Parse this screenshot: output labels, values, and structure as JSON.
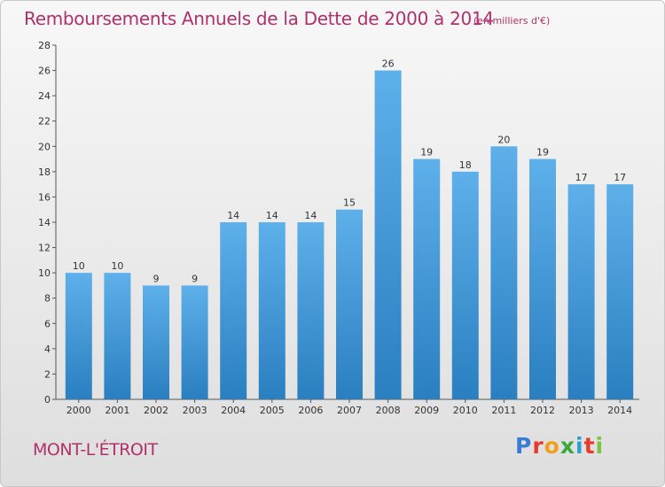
{
  "page": {
    "title": "Remboursements Annuels de la Dette de 2000 à 2014",
    "unit": "(en milliers d'€)",
    "commune": "MONT-L'ÉTROIT",
    "logo_text": "Proxiti"
  },
  "colors": {
    "title": "#b0306b",
    "bar_top": "#5eb0ea",
    "bar_bottom": "#2a7fc0",
    "logo": [
      "#3a7bd5",
      "#e63a2e",
      "#f0a020",
      "#3aa83a",
      "#2a9fd6",
      "#e63a2e",
      "#7bc142"
    ]
  },
  "chart_data": {
    "type": "bar",
    "categories": [
      "2000",
      "2001",
      "2002",
      "2003",
      "2004",
      "2005",
      "2006",
      "2007",
      "2008",
      "2009",
      "2010",
      "2011",
      "2012",
      "2013",
      "2014"
    ],
    "values": [
      10,
      10,
      9,
      9,
      14,
      14,
      14,
      15,
      26,
      19,
      18,
      20,
      19,
      17,
      17
    ],
    "ylim": [
      0,
      28
    ],
    "yticks": [
      0,
      2,
      4,
      6,
      8,
      10,
      12,
      14,
      16,
      18,
      20,
      22,
      24,
      26,
      28
    ],
    "data_labels": true,
    "grid": false
  }
}
